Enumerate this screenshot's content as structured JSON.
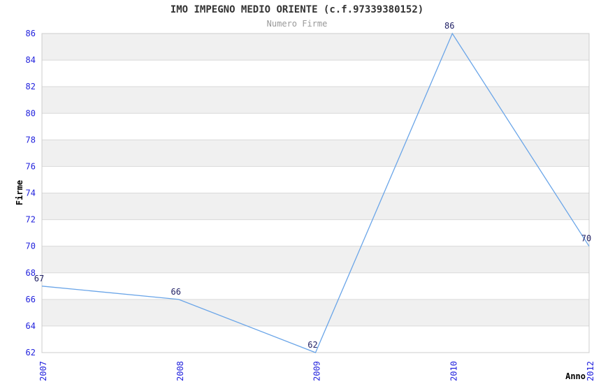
{
  "chart_data": {
    "type": "line",
    "title": "IMO IMPEGNO MEDIO ORIENTE (c.f.97339380152)",
    "subtitle": "Numero Firme",
    "xlabel": "Anno",
    "ylabel": "Firme",
    "categories": [
      "2007",
      "2008",
      "2009",
      "2010",
      "2012"
    ],
    "values": [
      67,
      66,
      62,
      86,
      70
    ],
    "data_labels": [
      "67",
      "66",
      "62",
      "86",
      "70"
    ],
    "ylim": [
      62,
      86
    ],
    "ytick_step": 2,
    "yticks": [
      62,
      64,
      66,
      68,
      70,
      72,
      74,
      76,
      78,
      80,
      82,
      84,
      86
    ],
    "grid": true,
    "legend_position": "none",
    "colors": {
      "line": "#6aa5e8",
      "band_gray": "#f0f0f0",
      "band_white": "#ffffff",
      "gridline": "#d9d9d9",
      "plot_border": "#cccccc",
      "tick_label": "#2222dd",
      "data_label": "#222266",
      "title": "#333333",
      "subtitle": "#999999",
      "axis_title": "#000000"
    }
  }
}
